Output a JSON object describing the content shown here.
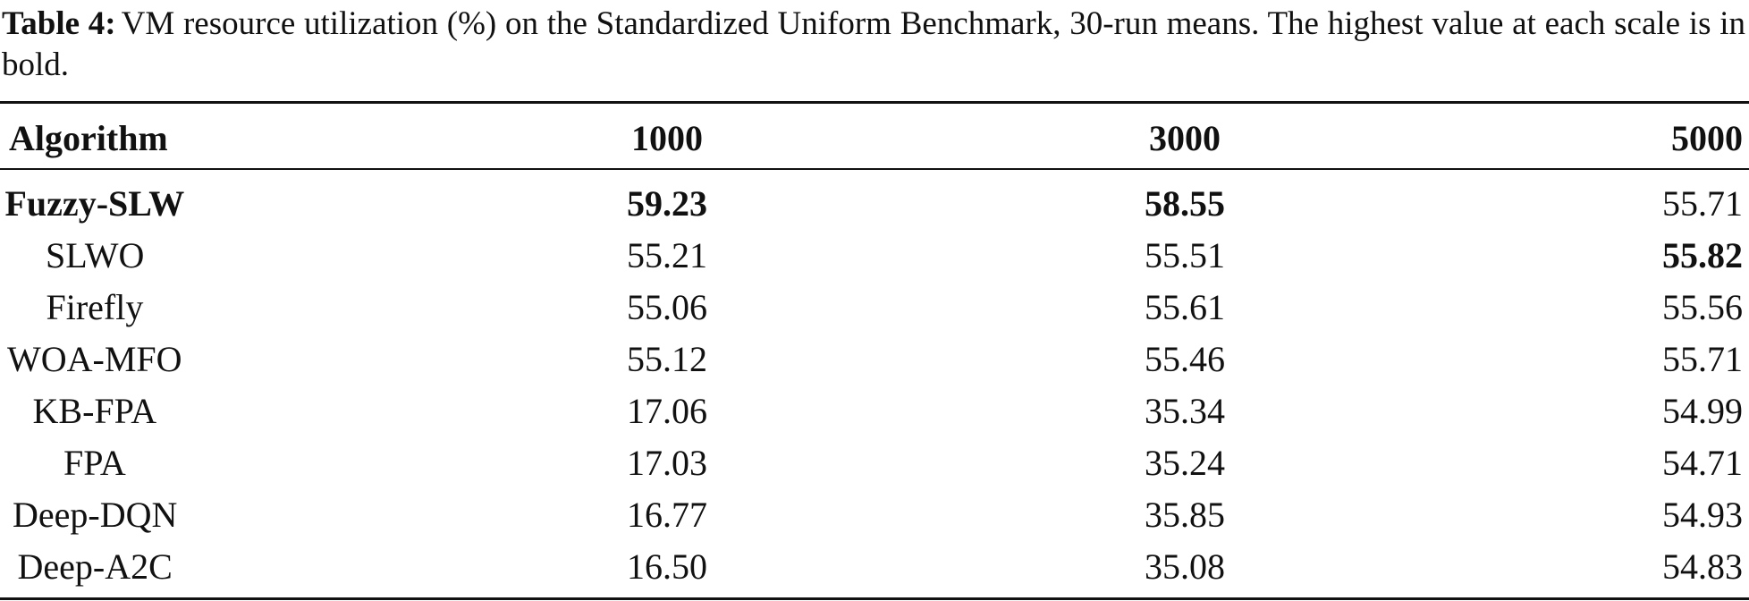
{
  "caption": {
    "label": "Table 4:",
    "text": "VM resource utilization (%) on the Standardized Uniform Benchmark, 30-run means. The highest value at each scale is in bold."
  },
  "table": {
    "header": [
      "Algorithm",
      "1000",
      "3000",
      "5000"
    ],
    "rows": [
      [
        "Fuzzy-SLW",
        "59.23",
        "58.55",
        "55.71"
      ],
      [
        "SLWO",
        "55.21",
        "55.51",
        "55.82"
      ],
      [
        "Firefly",
        "55.06",
        "55.61",
        "55.56"
      ],
      [
        "WOA-MFO",
        "55.12",
        "55.46",
        "55.71"
      ],
      [
        "KB-FPA",
        "17.06",
        "35.34",
        "54.99"
      ],
      [
        "FPA",
        "17.03",
        "35.24",
        "54.71"
      ],
      [
        "Deep-DQN",
        "16.77",
        "35.85",
        "54.93"
      ],
      [
        "Deep-A2C",
        "16.50",
        "35.08",
        "54.83"
      ]
    ],
    "bold": [
      [
        0,
        1,
        2
      ],
      [
        3
      ],
      [],
      [],
      [],
      [],
      [],
      []
    ]
  }
}
